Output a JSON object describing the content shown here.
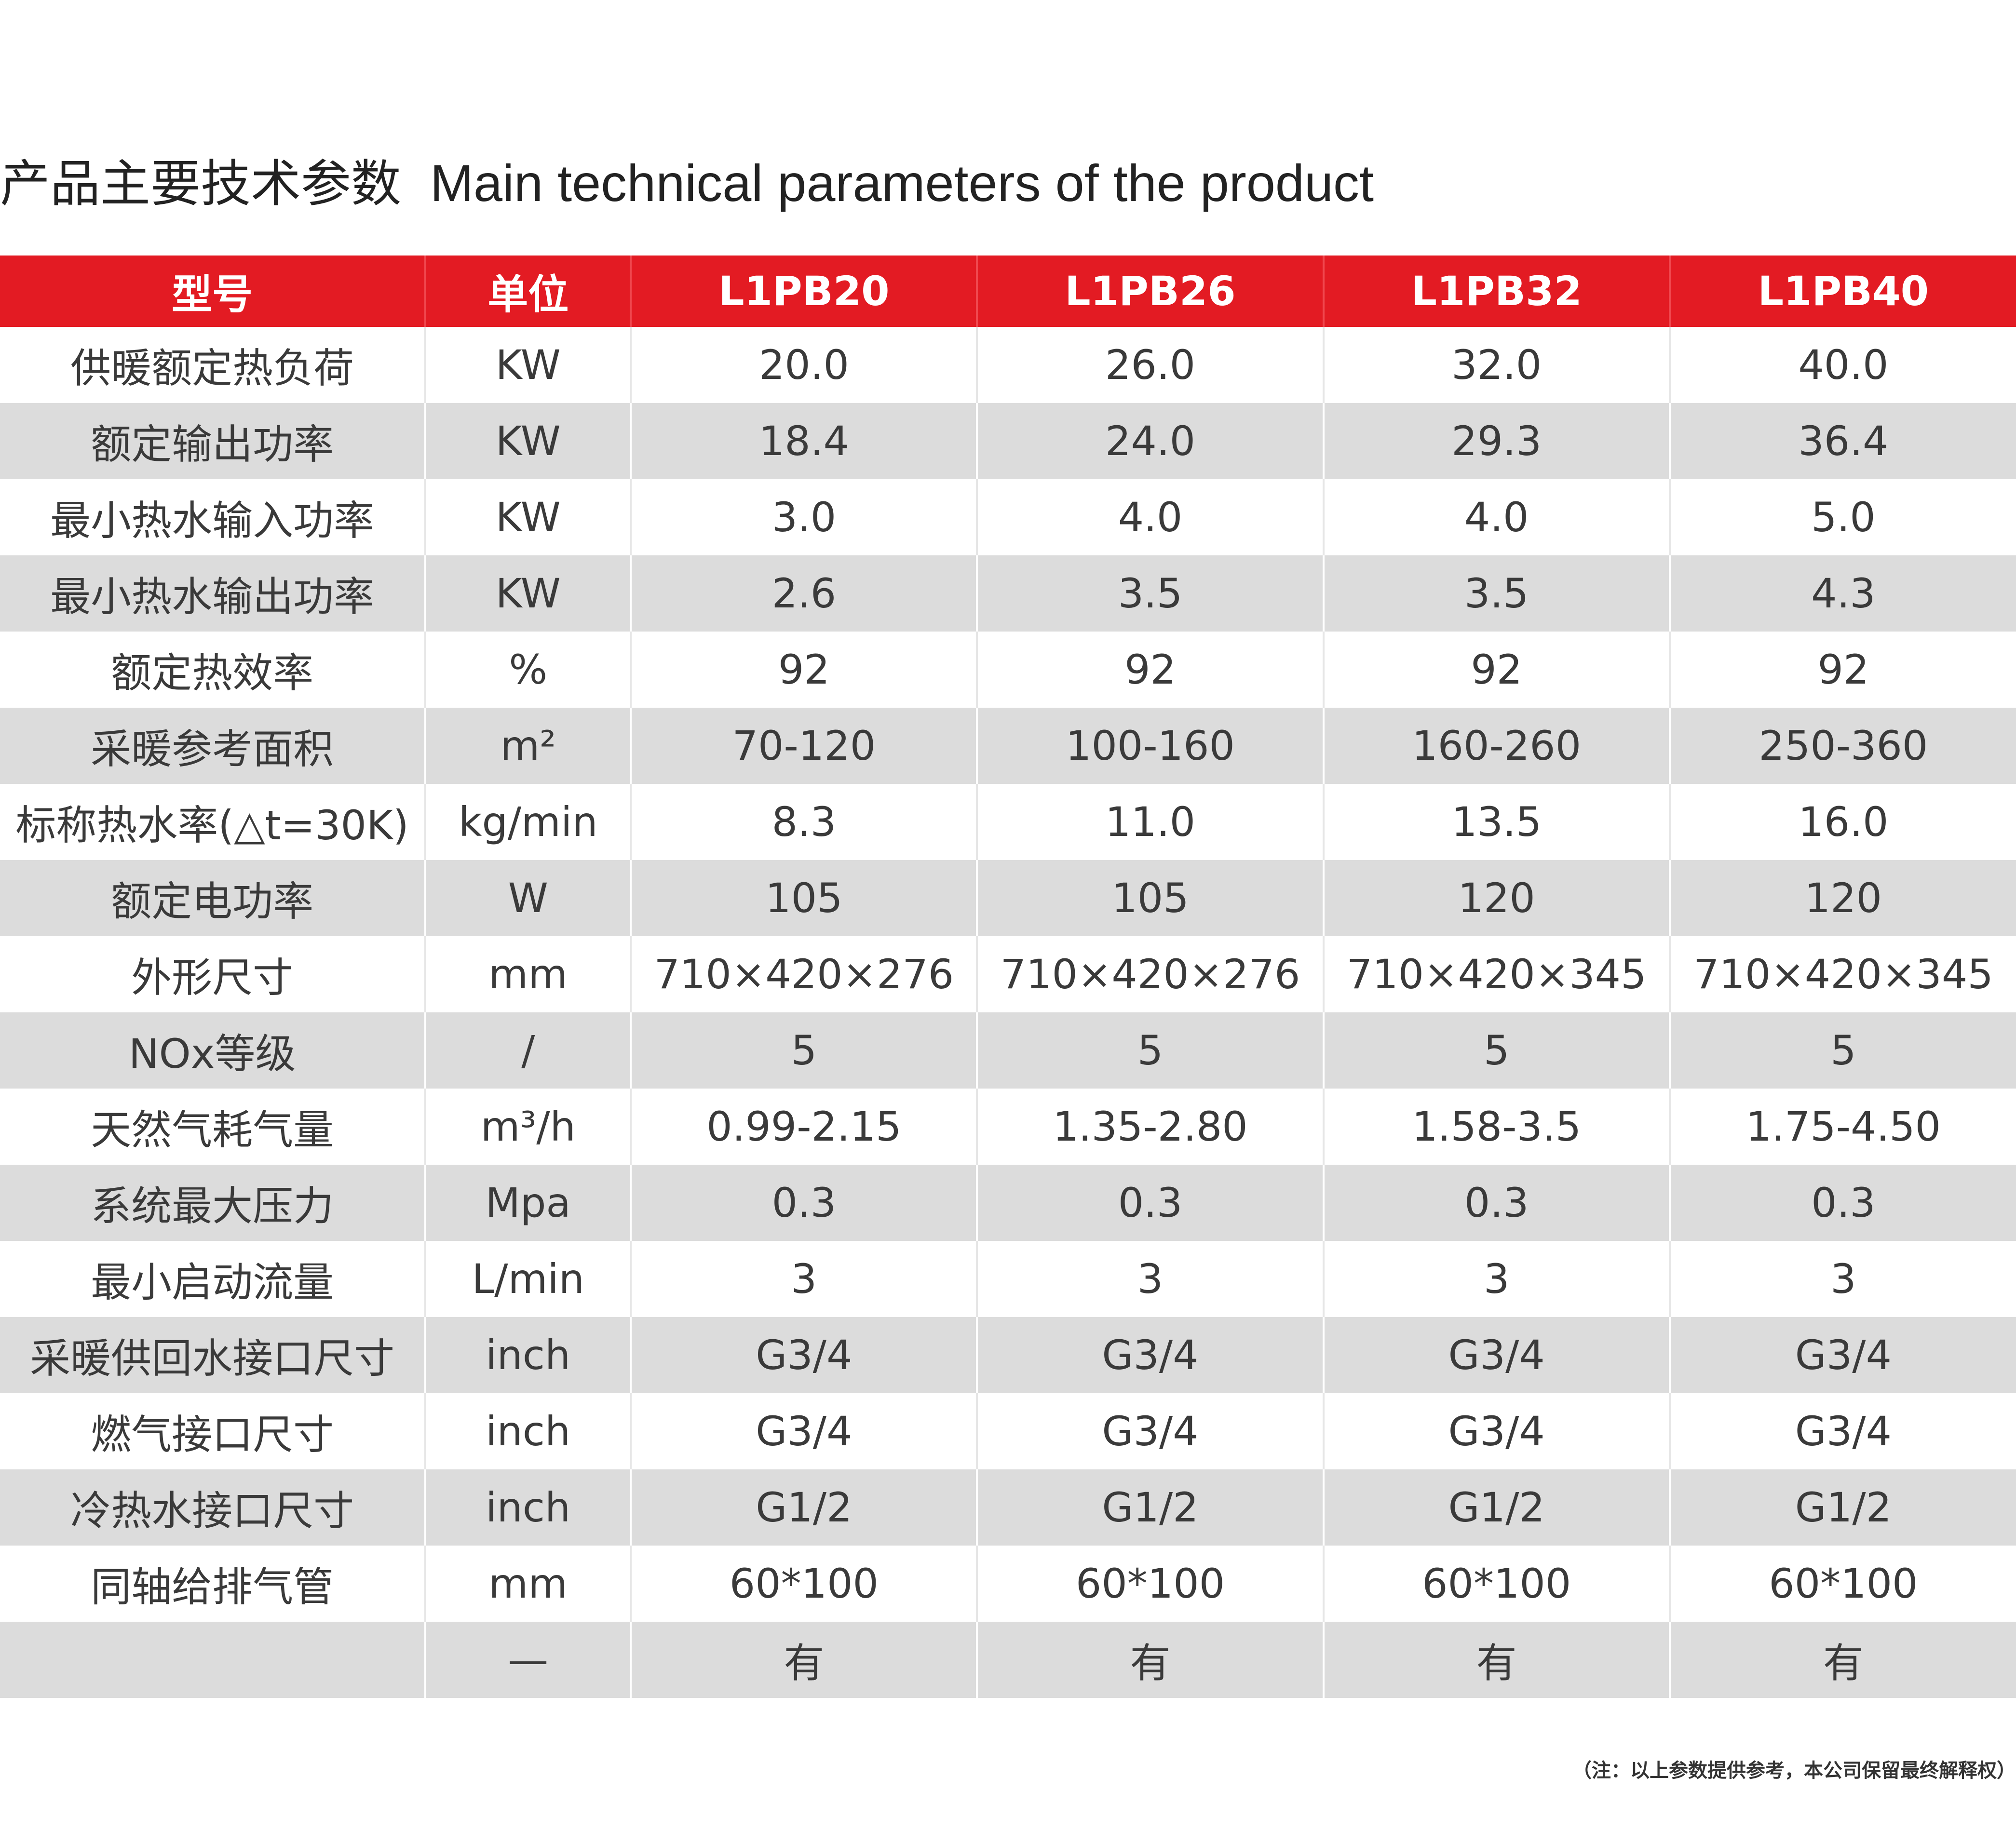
{
  "title": {
    "cn": "产品主要技术参数",
    "en": "Main technical parameters of the product"
  },
  "table": {
    "headers": [
      "型号",
      "单位",
      "L1PB20",
      "L1PB26",
      "L1PB32",
      "L1PB40"
    ],
    "rows": [
      {
        "name": "供暖额定热负荷",
        "unit": "KW",
        "values": [
          "20.0",
          "26.0",
          "32.0",
          "40.0"
        ]
      },
      {
        "name": "额定输出功率",
        "unit": "KW",
        "values": [
          "18.4",
          "24.0",
          "29.3",
          "36.4"
        ]
      },
      {
        "name": "最小热水输入功率",
        "unit": "KW",
        "values": [
          "3.0",
          "4.0",
          "4.0",
          "5.0"
        ]
      },
      {
        "name": "最小热水输出功率",
        "unit": "KW",
        "values": [
          "2.6",
          "3.5",
          "3.5",
          "4.3"
        ]
      },
      {
        "name": "额定热效率",
        "unit": "%",
        "values": [
          "92",
          "92",
          "92",
          "92"
        ]
      },
      {
        "name": "采暖参考面积",
        "unit": "m²",
        "values": [
          "70-120",
          "100-160",
          "160-260",
          "250-360"
        ]
      },
      {
        "name": "标称热水率(△t=30K)",
        "unit": "kg/min",
        "values": [
          "8.3",
          "11.0",
          "13.5",
          "16.0"
        ]
      },
      {
        "name": "额定电功率",
        "unit": "W",
        "values": [
          "105",
          "105",
          "120",
          "120"
        ]
      },
      {
        "name": "外形尺寸",
        "unit": "mm",
        "values": [
          "710×420×276",
          "710×420×276",
          "710×420×345",
          "710×420×345"
        ]
      },
      {
        "name": "NOx等级",
        "unit": "/",
        "values": [
          "5",
          "5",
          "5",
          "5"
        ]
      },
      {
        "name": "天然气耗气量",
        "unit": "m³/h",
        "values": [
          "0.99-2.15",
          "1.35-2.80",
          "1.58-3.5",
          "1.75-4.50"
        ]
      },
      {
        "name": "系统最大压力",
        "unit": "Mpa",
        "values": [
          "0.3",
          "0.3",
          "0.3",
          "0.3"
        ]
      },
      {
        "name": "最小启动流量",
        "unit": "L/min",
        "values": [
          "3",
          "3",
          "3",
          "3"
        ]
      },
      {
        "name": "采暖供回水接口尺寸",
        "unit": "inch",
        "values": [
          "G3/4",
          "G3/4",
          "G3/4",
          "G3/4"
        ]
      },
      {
        "name": "燃气接口尺寸",
        "unit": "inch",
        "values": [
          "G3/4",
          "G3/4",
          "G3/4",
          "G3/4"
        ]
      },
      {
        "name": "冷热水接口尺寸",
        "unit": "inch",
        "values": [
          "G1/2",
          "G1/2",
          "G1/2",
          "G1/2"
        ]
      },
      {
        "name": "同轴给排气管",
        "unit": "mm",
        "values": [
          "60*100",
          "60*100",
          "60*100",
          "60*100"
        ]
      },
      {
        "name": "",
        "unit": "—",
        "values": [
          "有",
          "有",
          "有",
          "有"
        ]
      }
    ]
  },
  "note": "（注：以上参数提供参考，本公司保留最终解释权）"
}
